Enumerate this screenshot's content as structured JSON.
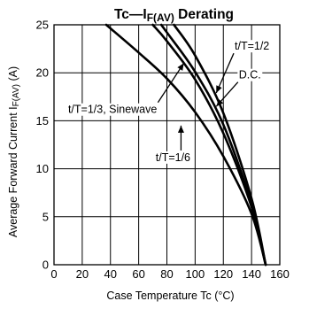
{
  "chart_data": {
    "type": "line",
    "title": "Tc—I",
    "title_subscript": "F(AV)",
    "title_suffix": " Derating",
    "xlabel": "Case Temperature  Tc (°C)",
    "ylabel": "Average Forward Current   I",
    "ylabel_subscript": "F(AV)",
    "ylabel_unit": " (A)",
    "xlim": [
      0,
      160
    ],
    "ylim": [
      0,
      25
    ],
    "x_ticks": [
      "0",
      "20",
      "40",
      "60",
      "80",
      "100",
      "120",
      "140",
      "160"
    ],
    "y_ticks": [
      "0",
      "5",
      "10",
      "15",
      "20",
      "25"
    ],
    "grid": true,
    "series": [
      {
        "name": "t/T = 1/6",
        "x": [
          37,
          60,
          80,
          100,
          120,
          140,
          150
        ],
        "y": [
          25,
          22.1,
          19.4,
          15.9,
          11.3,
          5.3,
          0
        ]
      },
      {
        "name": "t/T = 1/3, Sinewave",
        "x": [
          70,
          80,
          100,
          120,
          140,
          150
        ],
        "y": [
          25,
          23.3,
          19.3,
          13.7,
          6,
          0
        ]
      },
      {
        "name": "D.C.",
        "x": [
          76,
          80,
          100,
          120,
          140,
          150
        ],
        "y": [
          25,
          24.2,
          20.1,
          14.6,
          6.3,
          0
        ]
      },
      {
        "name": "t/T = 1/2",
        "x": [
          85,
          100,
          120,
          140,
          150
        ],
        "y": [
          25,
          21.8,
          15.8,
          6.9,
          0
        ]
      }
    ],
    "annotations": [
      {
        "text": "t/T=1/2",
        "series": "t/T = 1/2",
        "label_at": [
          128,
          22.4
        ],
        "arrow_to": [
          115,
          17.9
        ],
        "anchor": "start"
      },
      {
        "text": "D.C.",
        "series": "D.C.",
        "label_at": [
          131,
          19.4
        ],
        "arrow_to": [
          115,
          16.5
        ],
        "anchor": "start"
      },
      {
        "text": "t/T=1/3, Sinewave",
        "series": "t/T = 1/3, Sinewave",
        "label_at": [
          10,
          15.8
        ],
        "arrow_to": [
          92,
          21.0
        ],
        "anchor": "start"
      },
      {
        "text": "t/T=1/6",
        "series": "t/T = 1/6",
        "label_at": [
          72,
          10.8
        ],
        "arrow_to": [
          90,
          14.5
        ],
        "anchor": "start"
      }
    ]
  }
}
